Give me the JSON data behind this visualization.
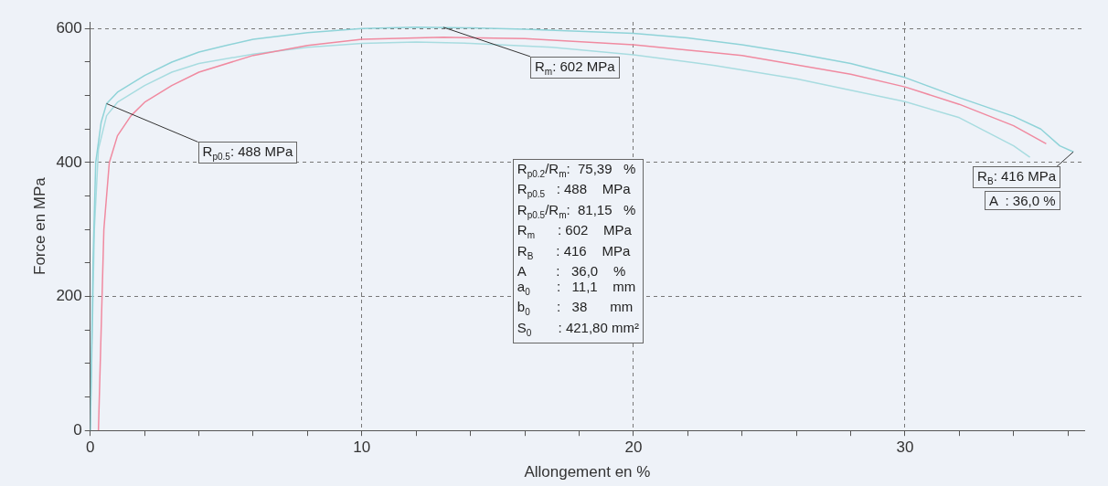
{
  "chart_data": {
    "type": "line",
    "xlabel": "Allongement en %",
    "ylabel": "Force en MPa",
    "xlim": [
      0,
      36.6
    ],
    "ylim": [
      0,
      610
    ],
    "xticks": [
      0,
      {
        "value": 2,
        "label": null
      },
      {
        "value": 4,
        "label": null
      },
      {
        "value": 6,
        "label": null
      },
      {
        "value": 8,
        "label": null
      },
      10,
      {
        "value": 12,
        "label": null
      },
      {
        "value": 14,
        "label": null
      },
      {
        "value": 16,
        "label": null
      },
      {
        "value": 18,
        "label": null
      },
      20,
      {
        "value": 22,
        "label": null
      },
      {
        "value": 24,
        "label": null
      },
      {
        "value": 26,
        "label": null
      },
      {
        "value": 28,
        "label": null
      },
      30,
      {
        "value": 32,
        "label": null
      },
      {
        "value": 34,
        "label": null
      },
      {
        "value": 36,
        "label": null
      }
    ],
    "yticks": [
      0,
      {
        "value": 50,
        "label": null
      },
      {
        "value": 100,
        "label": null
      },
      {
        "value": 150,
        "label": null
      },
      200,
      {
        "value": 250,
        "label": null
      },
      {
        "value": 300,
        "label": null
      },
      {
        "value": 350,
        "label": null
      },
      400,
      {
        "value": 450,
        "label": null
      },
      {
        "value": 500,
        "label": null
      },
      {
        "value": 550,
        "label": null
      },
      600
    ],
    "grid": true,
    "legend": false,
    "marker": "none",
    "line_style": "solid",
    "series": [
      {
        "color": "#8fd3d8",
        "x": [
          0,
          0.1,
          0.2,
          0.4,
          0.6,
          1,
          2,
          3,
          4,
          5,
          6,
          8,
          10,
          12,
          14,
          16,
          18,
          20,
          22,
          24,
          26,
          28,
          30,
          32,
          34,
          35,
          35.7,
          36.2
        ],
        "values": [
          0,
          250,
          400,
          460,
          488,
          505,
          530,
          550,
          565,
          575,
          584,
          594,
          600,
          602,
          601,
          599,
          596,
          593,
          586,
          576,
          563,
          548,
          527,
          497,
          469,
          450,
          425,
          416
        ]
      },
      {
        "color": "#f08aa0",
        "x": [
          0.3,
          0.5,
          0.7,
          1,
          1.5,
          2,
          3,
          4,
          6,
          8,
          10,
          13,
          16,
          20,
          24,
          28,
          30,
          32,
          34,
          35.2
        ],
        "values": [
          0,
          300,
          400,
          440,
          470,
          490,
          515,
          535,
          560,
          575,
          584,
          587,
          585,
          576,
          560,
          532,
          513,
          487,
          455,
          428
        ]
      },
      {
        "color": "#a8dce0",
        "x": [
          0,
          0.15,
          0.3,
          0.6,
          1,
          2,
          3,
          4,
          6,
          8,
          10,
          12,
          14,
          17,
          20,
          23,
          26,
          30,
          32,
          34,
          34.6
        ],
        "values": [
          0,
          300,
          420,
          470,
          490,
          515,
          535,
          548,
          562,
          572,
          578,
          580,
          578,
          572,
          561,
          545,
          525,
          491,
          467,
          425,
          408
        ]
      }
    ],
    "annotations": [
      {
        "text": "R$_{p0.5}$: 488 MPa",
        "x": 0.6,
        "y": 488
      },
      {
        "text": "R$_{m}$: 602 MPa",
        "x": 13,
        "y": 602
      },
      {
        "text": "R$_{B}$: 416 MPa",
        "x": 36.2,
        "y": 416
      },
      "A  : 36,0 %",
      "R$_{p0.2}$/R$_{m}$:  75,39   %",
      "R$_{p0.5}$   : 488    MPa",
      "R$_{p0.5}$/R$_{m}$:  81,15   %",
      "R$_{m}$      : 602    MPa",
      "R$_{B}$      : 416    MPa",
      "A        :   36,0    %",
      "a$_{0}$       :   11,1    mm",
      "b$_{0}$       :   38      mm",
      "S$_{0}$       : 421,80 mm²"
    ]
  }
}
